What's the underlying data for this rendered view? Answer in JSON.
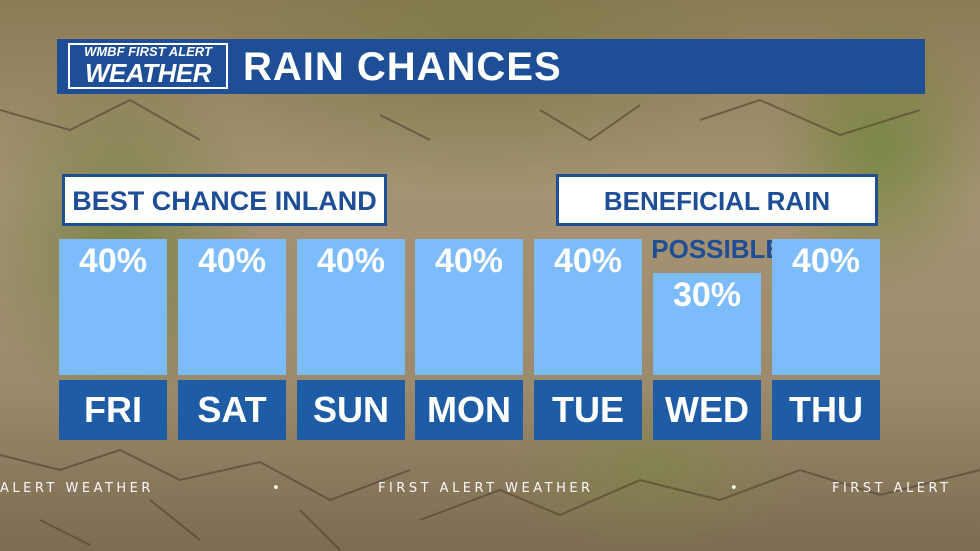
{
  "header": {
    "logo_line1": "WMBF FIRST ALERT",
    "logo_line2": "WEATHER",
    "title": "RAIN CHANCES",
    "color": "#1e4f96"
  },
  "callouts": {
    "left": "BEST CHANCE INLAND",
    "right": "BENEFICIAL RAIN POSSIBLE"
  },
  "ticker": {
    "segments": [
      "ALERT WEATHER",
      "•",
      "FIRST ALERT WEATHER",
      "•",
      "FIRST ALERT"
    ]
  },
  "colors": {
    "bar": "#7dbcfb",
    "day_box": "#1e5ca6"
  },
  "chart_data": {
    "type": "bar",
    "title": "RAIN CHANCES",
    "categories": [
      "FRI",
      "SAT",
      "SUN",
      "MON",
      "TUE",
      "WED",
      "THU"
    ],
    "values": [
      40,
      40,
      40,
      40,
      40,
      30,
      40
    ],
    "labels": [
      "40%",
      "40%",
      "40%",
      "40%",
      "40%",
      "30%",
      "40%"
    ],
    "unit": "%"
  }
}
